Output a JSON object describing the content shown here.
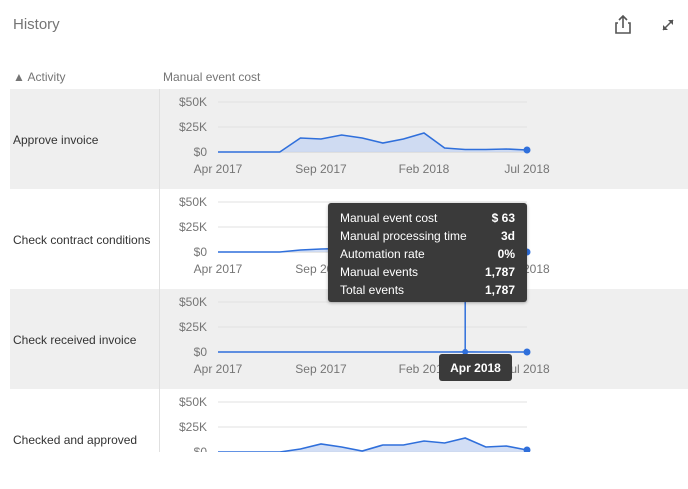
{
  "header": {
    "title": "History",
    "share_icon": "share-icon",
    "expand_icon": "expand-icon"
  },
  "table": {
    "col_activity": "▲ Activity",
    "col_metric": "Manual event cost"
  },
  "axis": {
    "y_ticks": [
      "$50K",
      "$25K",
      "$0"
    ],
    "x_ticks": [
      "Apr 2017",
      "Sep 2017",
      "Feb 2018",
      "Jul 2018"
    ]
  },
  "tooltip": {
    "rows": [
      {
        "label": "Manual event cost",
        "value": "$ 63"
      },
      {
        "label": "Manual processing time",
        "value": "3d"
      },
      {
        "label": "Automation rate",
        "value": "0%"
      },
      {
        "label": "Manual events",
        "value": "1,787"
      },
      {
        "label": "Total events",
        "value": "1,787"
      }
    ],
    "date": "Apr 2018"
  },
  "colors": {
    "line": "#2f6fdb",
    "fill": "#c7d6f3",
    "row_shade": "#efefef",
    "tooltip_bg": "#3a3a3a"
  },
  "chart_data": [
    {
      "type": "area",
      "title": "Approve invoice",
      "ylim": [
        0,
        50000
      ],
      "x": [
        "Apr 2017",
        "May 2017",
        "Jun 2017",
        "Jul 2017",
        "Aug 2017",
        "Sep 2017",
        "Oct 2017",
        "Nov 2017",
        "Dec 2017",
        "Jan 2018",
        "Feb 2018",
        "Mar 2018",
        "Apr 2018",
        "May 2018",
        "Jun 2018",
        "Jul 2018"
      ],
      "values": [
        0,
        0,
        0,
        0,
        14000,
        13000,
        17000,
        14000,
        9000,
        13000,
        19000,
        4000,
        2500,
        2500,
        3000,
        2000
      ]
    },
    {
      "type": "area",
      "title": "Check contract conditions",
      "ylim": [
        0,
        50000
      ],
      "x": [
        "Apr 2017",
        "May 2017",
        "Jun 2017",
        "Jul 2017",
        "Aug 2017",
        "Sep 2017",
        "Oct 2017",
        "Nov 2017",
        "Dec 2017",
        "Jan 2018",
        "Feb 2018",
        "Mar 2018",
        "Apr 2018",
        "May 2018",
        "Jun 2018",
        "Jul 2018"
      ],
      "values": [
        0,
        0,
        0,
        0,
        2000,
        3000,
        3500,
        3000,
        3000,
        3000,
        3000,
        2500,
        1500,
        1000,
        500,
        0
      ]
    },
    {
      "type": "area",
      "title": "Check received invoice",
      "ylim": [
        0,
        50000
      ],
      "x": [
        "Apr 2017",
        "May 2017",
        "Jun 2017",
        "Jul 2017",
        "Aug 2017",
        "Sep 2017",
        "Oct 2017",
        "Nov 2017",
        "Dec 2017",
        "Jan 2018",
        "Feb 2018",
        "Mar 2018",
        "Apr 2018",
        "May 2018",
        "Jun 2018",
        "Jul 2018"
      ],
      "values": [
        0,
        0,
        0,
        0,
        0,
        0,
        0,
        0,
        0,
        0,
        0,
        0,
        63,
        0,
        0,
        0
      ]
    },
    {
      "type": "area",
      "title": "Checked and approved",
      "ylim": [
        0,
        50000
      ],
      "x": [
        "Apr 2017",
        "May 2017",
        "Jun 2017",
        "Jul 2017",
        "Aug 2017",
        "Sep 2017",
        "Oct 2017",
        "Nov 2017",
        "Dec 2017",
        "Jan 2018",
        "Feb 2018",
        "Mar 2018",
        "Apr 2018",
        "May 2018",
        "Jun 2018",
        "Jul 2018"
      ],
      "values": [
        0,
        0,
        0,
        0,
        3000,
        8000,
        5000,
        1000,
        7000,
        7000,
        11000,
        9000,
        14000,
        5000,
        6000,
        2000
      ]
    }
  ]
}
